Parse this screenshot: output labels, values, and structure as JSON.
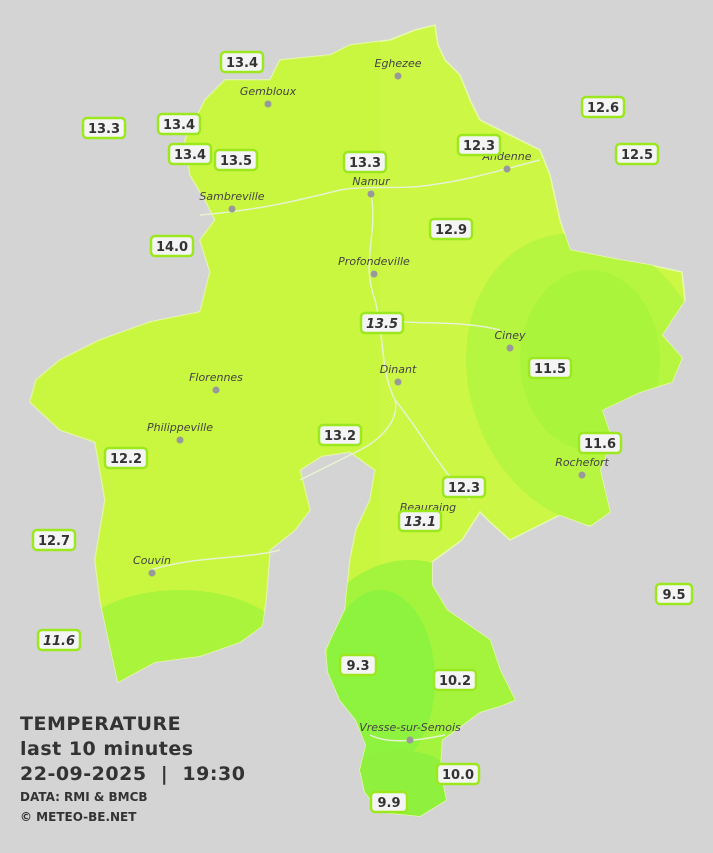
{
  "title": {
    "heading": "TEMPERATURE",
    "subheading": "last 10 minutes",
    "datetime": "22-09-2025  |  19:30",
    "source": "DATA: RMI & BMCB",
    "credit": "© METEO-BE.NET"
  },
  "cities": [
    "Eghezee",
    "Gembloux",
    "Andenne",
    "Namur",
    "Sambreville",
    "Profondeville",
    "Ciney",
    "Dinant",
    "Florennes",
    "Philippeville",
    "Rochefort",
    "Beauraing",
    "Couvin",
    "Vresse-sur-Semois"
  ],
  "stations": [
    "13.4",
    "13.3",
    "13.4",
    "13.4",
    "13.5",
    "13.3",
    "12.3",
    "12.6",
    "12.5",
    "14.0",
    "12.9",
    "13.5",
    "11.5",
    "13.2",
    "11.6",
    "12.2",
    "12.3",
    "13.1",
    "12.7",
    "9.5",
    "11.6",
    "9.3",
    "10.2",
    "10.0",
    "9.9"
  ]
}
